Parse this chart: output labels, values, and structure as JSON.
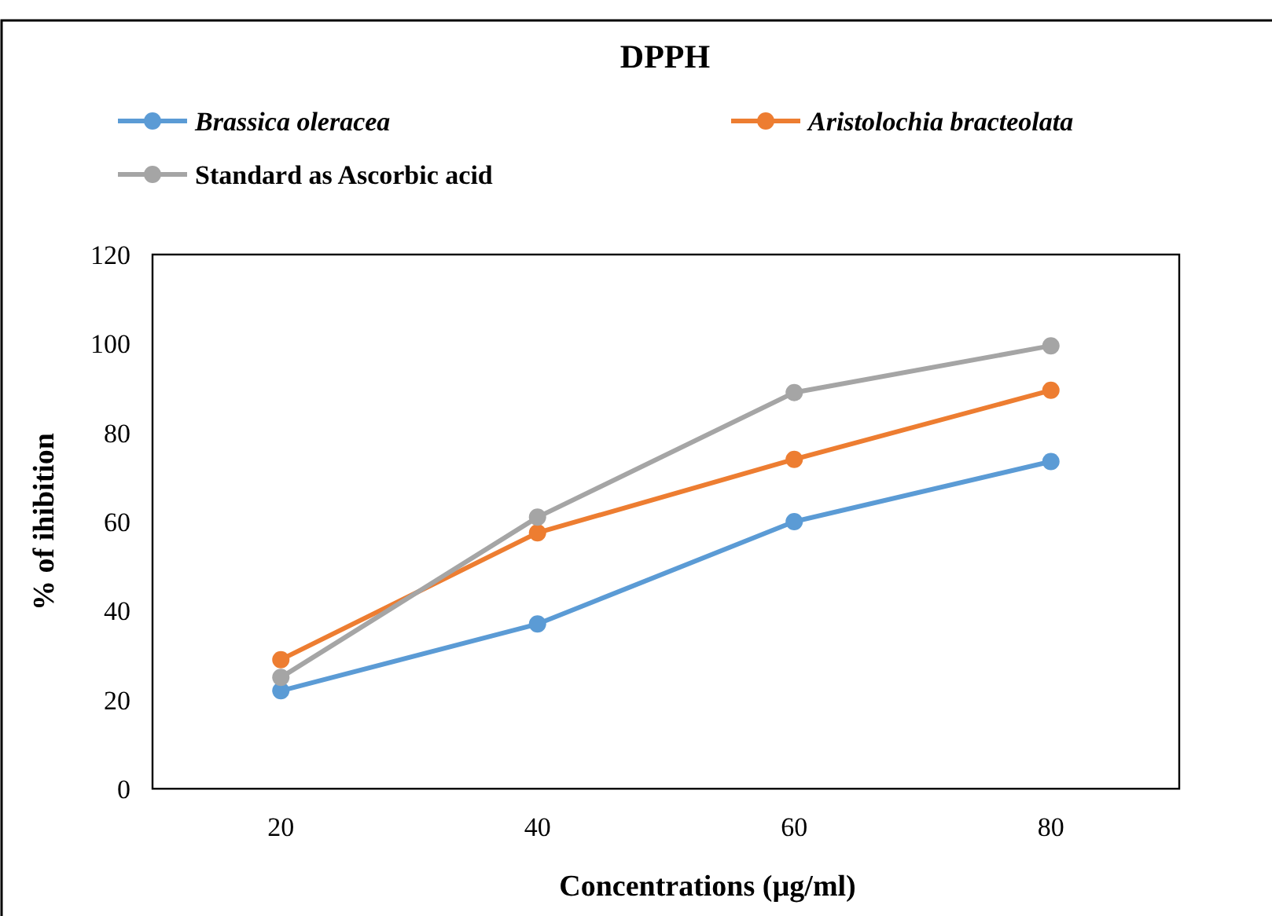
{
  "chart_data": {
    "type": "line",
    "title": "DPPH",
    "xlabel": "Concentrations (µg/ml)",
    "ylabel": "% of ihibition",
    "categories": [
      "20",
      "40",
      "60",
      "80"
    ],
    "series": [
      {
        "name": "Brassica oleracea",
        "color": "#5b9bd5",
        "values": [
          22,
          37,
          60,
          73.5
        ]
      },
      {
        "name": "Aristolochia bracteolata",
        "color": "#ed7d31",
        "values": [
          29,
          57.5,
          74,
          89.5
        ]
      },
      {
        "name": "Standard as Ascorbic acid",
        "color": "#a5a5a5",
        "values": [
          25,
          61,
          89,
          99.5
        ]
      }
    ],
    "ylim": [
      0,
      120
    ],
    "yticks": [
      0,
      20,
      40,
      60,
      80,
      100,
      120
    ],
    "grid": false,
    "legend": "top",
    "marker": "circle",
    "line_style": "solid"
  }
}
